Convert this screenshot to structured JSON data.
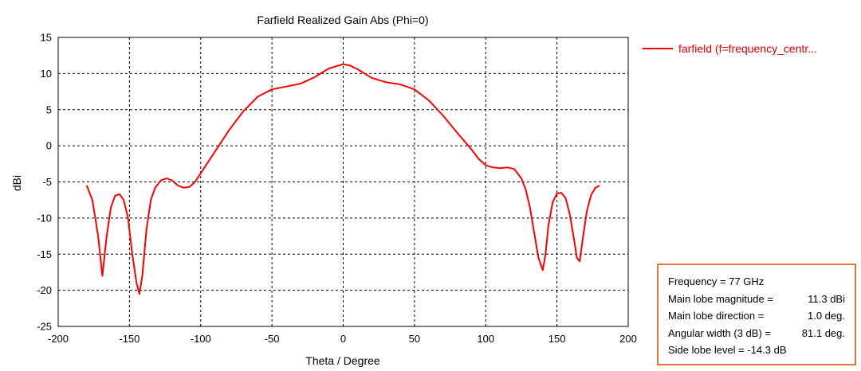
{
  "chart_data": {
    "type": "line",
    "title": "Farfield Realized Gain Abs (Phi=0)",
    "xlabel": "Theta / Degree",
    "ylabel": "dBi",
    "xlim": [
      -200,
      200
    ],
    "ylim": [
      -25,
      15
    ],
    "xticks": [
      -200,
      -150,
      -100,
      -50,
      0,
      50,
      100,
      150,
      200
    ],
    "yticks": [
      15,
      10,
      5,
      0,
      -5,
      -10,
      -15,
      -20,
      -25
    ],
    "grid": true,
    "legend_position": "top-right",
    "series": [
      {
        "name": "farfield (f=frequency_centr...",
        "color": "#ff0000",
        "x": [
          -180,
          -176,
          -172,
          -169,
          -166,
          -163,
          -160,
          -157,
          -154,
          -151,
          -148,
          -145,
          -143,
          -141,
          -138,
          -135,
          -132,
          -128,
          -124,
          -120,
          -116,
          -112,
          -108,
          -104,
          -100,
          -95,
          -90,
          -80,
          -70,
          -60,
          -50,
          -40,
          -30,
          -20,
          -10,
          0,
          5,
          10,
          20,
          30,
          40,
          50,
          60,
          70,
          80,
          90,
          95,
          100,
          105,
          110,
          115,
          120,
          125,
          128,
          131,
          134,
          137,
          140,
          142,
          144,
          147,
          150,
          153,
          156,
          159,
          162,
          164,
          166,
          168,
          171,
          174,
          177,
          180
        ],
        "values": [
          -5.5,
          -7.5,
          -12.5,
          -18.0,
          -12.5,
          -8.5,
          -6.9,
          -6.7,
          -7.5,
          -10.0,
          -15.0,
          -19.0,
          -20.5,
          -18.0,
          -11.5,
          -7.5,
          -5.8,
          -4.8,
          -4.5,
          -4.8,
          -5.5,
          -5.8,
          -5.7,
          -5.0,
          -3.8,
          -2.3,
          -0.8,
          2.2,
          4.8,
          6.8,
          7.8,
          8.2,
          8.6,
          9.5,
          10.7,
          11.3,
          11.1,
          10.6,
          9.4,
          8.8,
          8.5,
          7.8,
          6.3,
          4.2,
          1.8,
          -0.5,
          -1.8,
          -2.7,
          -3.0,
          -3.1,
          -3.0,
          -3.2,
          -4.5,
          -6.0,
          -8.5,
          -12.0,
          -15.5,
          -17.2,
          -15.0,
          -11.0,
          -7.8,
          -6.6,
          -6.5,
          -7.2,
          -9.5,
          -13.0,
          -15.5,
          -16.0,
          -13.0,
          -9.0,
          -6.8,
          -5.8,
          -5.5
        ]
      }
    ]
  },
  "info_box": {
    "rows": [
      {
        "label": "Frequency = 77 GHz",
        "value": ""
      },
      {
        "label": "Main lobe magnitude =",
        "value": "11.3 dBi"
      },
      {
        "label": "Main lobe direction =",
        "value": "1.0 deg."
      },
      {
        "label": "Angular width (3 dB) =",
        "value": "81.1 deg."
      },
      {
        "label": "Side lobe level = -14.3 dB",
        "value": ""
      }
    ],
    "border_color": "#e8743b"
  }
}
